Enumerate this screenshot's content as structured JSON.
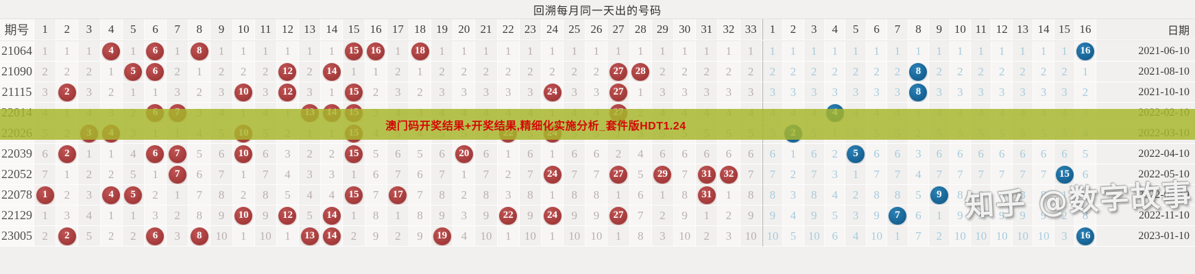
{
  "title": "回溯每月同一天出的号码",
  "header": {
    "period_label": "期号",
    "date_label": "日期",
    "red_columns": [
      1,
      2,
      3,
      4,
      5,
      6,
      7,
      8,
      9,
      10,
      11,
      12,
      13,
      14,
      15,
      16,
      17,
      18,
      19,
      20,
      21,
      22,
      23,
      24,
      25,
      26,
      27,
      28,
      29,
      30,
      31,
      32,
      33
    ],
    "blue_columns": [
      1,
      2,
      3,
      4,
      5,
      6,
      7,
      8,
      9,
      10,
      11,
      12,
      13,
      14,
      15,
      16
    ]
  },
  "banner": {
    "text": "澳门码开奖结果+开奖结果,精细化实施分析_套件版HDT1.24"
  },
  "watermark": {
    "text": "知乎 @数字故事"
  },
  "colors": {
    "red_ball": "#a03737",
    "blue_ball": "#135e8f",
    "miss_red": "#b9b0ae",
    "miss_blue": "#a7cbdc",
    "banner_bg": "#a8b62c",
    "banner_text": "#d40808",
    "background": "#f1f0ee"
  },
  "chart_data": {
    "type": "table",
    "title": "回溯每月同一天出的号码",
    "description": "lottery trend table: plain numbers are omission counts, circled numbers are drawn balls",
    "rows": [
      {
        "period": "21064",
        "date": "2021-06-10",
        "red": [
          1,
          1,
          1,
          4,
          1,
          6,
          1,
          8,
          1,
          1,
          1,
          1,
          1,
          1,
          15,
          16,
          1,
          18,
          1,
          1,
          1,
          1,
          1,
          1,
          1,
          1,
          1,
          1,
          1,
          1,
          1,
          1,
          1
        ],
        "red_hits": [
          4,
          6,
          8,
          15,
          16,
          18
        ],
        "blue": [
          1,
          1,
          1,
          1,
          1,
          1,
          1,
          1,
          1,
          1,
          1,
          1,
          1,
          1,
          1,
          16
        ],
        "blue_hits": [
          16
        ]
      },
      {
        "period": "21090",
        "date": "2021-08-10",
        "red": [
          2,
          2,
          2,
          1,
          5,
          6,
          2,
          1,
          2,
          2,
          2,
          12,
          2,
          14,
          1,
          1,
          2,
          1,
          2,
          2,
          2,
          2,
          2,
          2,
          2,
          2,
          27,
          28,
          2,
          2,
          2,
          2,
          2
        ],
        "red_hits": [
          5,
          6,
          12,
          14,
          27,
          28
        ],
        "blue": [
          2,
          2,
          2,
          2,
          2,
          2,
          2,
          8,
          2,
          2,
          2,
          2,
          2,
          2,
          2,
          1
        ],
        "blue_hits": [
          8
        ]
      },
      {
        "period": "21115",
        "date": "2021-10-10",
        "red": [
          3,
          2,
          3,
          2,
          1,
          1,
          3,
          2,
          3,
          10,
          3,
          12,
          3,
          1,
          15,
          2,
          3,
          2,
          3,
          3,
          3,
          3,
          3,
          24,
          3,
          3,
          27,
          1,
          3,
          3,
          3,
          3,
          3
        ],
        "red_hits": [
          2,
          10,
          12,
          15,
          24,
          27
        ],
        "blue": [
          3,
          3,
          3,
          3,
          3,
          3,
          3,
          8,
          3,
          3,
          3,
          3,
          3,
          3,
          3,
          2
        ],
        "blue_hits": [
          8
        ]
      },
      {
        "period": "22014",
        "date": "2022-02-10",
        "red": [
          4,
          1,
          4,
          3,
          2,
          6,
          7,
          3,
          4,
          1,
          4,
          1,
          13,
          14,
          15,
          3,
          4,
          3,
          4,
          4,
          4,
          4,
          4,
          1,
          4,
          4,
          27,
          2,
          4,
          4,
          4,
          4,
          4
        ],
        "red_hits": [
          6,
          7,
          13,
          14,
          15,
          27
        ],
        "blue": [
          4,
          4,
          4,
          4,
          4,
          4,
          4,
          1,
          4,
          4,
          4,
          4,
          4,
          4,
          4,
          3
        ],
        "blue_hits": [
          4
        ]
      },
      {
        "period": "22026",
        "date": "2022-03-10",
        "red": [
          5,
          2,
          3,
          4,
          3,
          1,
          1,
          4,
          5,
          10,
          5,
          2,
          1,
          1,
          15,
          4,
          5,
          4,
          5,
          5,
          5,
          22,
          5,
          24,
          5,
          5,
          1,
          3,
          5,
          5,
          5,
          5,
          5
        ],
        "red_hits": [
          3,
          4,
          10,
          15,
          22,
          24
        ],
        "blue": [
          5,
          2,
          5,
          1,
          5,
          5,
          5,
          2,
          5,
          5,
          5,
          5,
          5,
          5,
          5,
          4
        ],
        "blue_hits": [
          2
        ]
      },
      {
        "period": "22039",
        "date": "2022-04-10",
        "red": [
          6,
          2,
          1,
          1,
          4,
          6,
          7,
          5,
          6,
          10,
          6,
          3,
          2,
          2,
          15,
          5,
          6,
          5,
          6,
          20,
          6,
          1,
          6,
          1,
          6,
          6,
          2,
          4,
          6,
          6,
          6,
          6,
          6
        ],
        "red_hits": [
          2,
          6,
          7,
          10,
          15,
          20
        ],
        "blue": [
          6,
          1,
          6,
          2,
          5,
          6,
          6,
          3,
          6,
          6,
          6,
          6,
          6,
          6,
          6,
          5
        ],
        "blue_hits": [
          5
        ]
      },
      {
        "period": "22052",
        "date": "2022-05-10",
        "red": [
          7,
          1,
          2,
          2,
          5,
          1,
          7,
          6,
          7,
          1,
          7,
          4,
          3,
          3,
          1,
          6,
          7,
          6,
          7,
          1,
          7,
          2,
          7,
          24,
          7,
          7,
          27,
          5,
          29,
          7,
          31,
          32,
          7
        ],
        "red_hits": [
          7,
          24,
          27,
          29,
          31,
          32
        ],
        "blue": [
          7,
          2,
          7,
          3,
          1,
          7,
          7,
          4,
          7,
          7,
          7,
          7,
          7,
          7,
          15,
          6
        ],
        "blue_hits": [
          15
        ]
      },
      {
        "period": "22078",
        "date": "2022-07-10",
        "red": [
          1,
          2,
          3,
          4,
          5,
          2,
          1,
          7,
          8,
          2,
          8,
          5,
          4,
          4,
          15,
          7,
          17,
          7,
          8,
          2,
          8,
          3,
          8,
          1,
          8,
          8,
          1,
          6,
          1,
          8,
          31,
          1,
          8
        ],
        "red_hits": [
          1,
          4,
          5,
          15,
          17,
          31
        ],
        "blue": [
          8,
          3,
          8,
          4,
          2,
          8,
          8,
          5,
          9,
          8,
          8,
          8,
          8,
          8,
          1,
          7
        ],
        "blue_hits": [
          9
        ]
      },
      {
        "period": "22129",
        "date": "2022-11-10",
        "red": [
          1,
          3,
          4,
          1,
          1,
          3,
          2,
          8,
          9,
          10,
          9,
          12,
          5,
          14,
          1,
          8,
          1,
          8,
          9,
          3,
          9,
          22,
          9,
          24,
          9,
          9,
          27,
          7,
          2,
          9,
          1,
          2,
          9
        ],
        "red_hits": [
          10,
          12,
          14,
          22,
          24,
          27
        ],
        "blue": [
          9,
          4,
          9,
          5,
          3,
          9,
          7,
          6,
          1,
          9,
          9,
          9,
          9,
          9,
          2,
          8
        ],
        "blue_hits": [
          7
        ]
      },
      {
        "period": "23005",
        "date": "2023-01-10",
        "red": [
          2,
          2,
          5,
          2,
          2,
          6,
          3,
          8,
          10,
          1,
          10,
          1,
          13,
          14,
          2,
          9,
          2,
          9,
          19,
          4,
          10,
          1,
          10,
          1,
          10,
          10,
          1,
          8,
          3,
          10,
          2,
          3,
          10
        ],
        "red_hits": [
          2,
          6,
          8,
          13,
          14,
          19
        ],
        "blue": [
          10,
          5,
          10,
          6,
          4,
          10,
          1,
          7,
          2,
          10,
          10,
          10,
          10,
          10,
          3,
          16
        ],
        "blue_hits": [
          16
        ]
      }
    ]
  }
}
